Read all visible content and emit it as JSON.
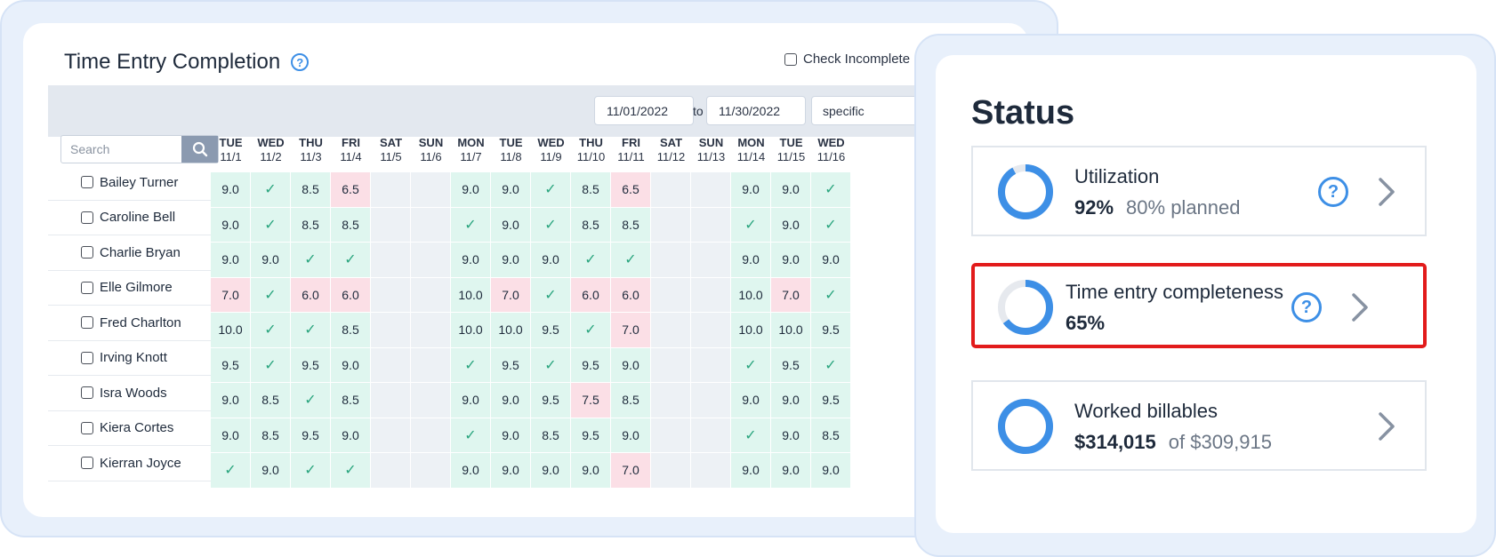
{
  "timesheet": {
    "title": "Time Entry Completion",
    "help_icon": "question-circle-icon",
    "check_incomplete_label": "Check Incomplete",
    "date_from": "11/01/2022",
    "date_to": "11/30/2022",
    "to_label": "to",
    "range_mode": "specific",
    "search_placeholder": "Search",
    "days": [
      {
        "dow": "TUE",
        "date": "11/1"
      },
      {
        "dow": "WED",
        "date": "11/2"
      },
      {
        "dow": "THU",
        "date": "11/3"
      },
      {
        "dow": "FRI",
        "date": "11/4"
      },
      {
        "dow": "SAT",
        "date": "11/5"
      },
      {
        "dow": "SUN",
        "date": "11/6"
      },
      {
        "dow": "MON",
        "date": "11/7"
      },
      {
        "dow": "TUE",
        "date": "11/8"
      },
      {
        "dow": "WED",
        "date": "11/9"
      },
      {
        "dow": "THU",
        "date": "11/10"
      },
      {
        "dow": "FRI",
        "date": "11/11"
      },
      {
        "dow": "SAT",
        "date": "11/12"
      },
      {
        "dow": "SUN",
        "date": "11/13"
      },
      {
        "dow": "MON",
        "date": "11/14"
      },
      {
        "dow": "TUE",
        "date": "11/15"
      },
      {
        "dow": "WED",
        "date": "11/16"
      }
    ],
    "rows": [
      {
        "name": "Bailey Turner",
        "cells": [
          "9.0",
          "✓",
          "8.5",
          "6.5",
          "",
          "",
          "9.0",
          "9.0",
          "✓",
          "8.5",
          "6.5",
          "",
          "",
          "9.0",
          "9.0",
          "✓"
        ],
        "low": [
          3,
          10
        ]
      },
      {
        "name": "Caroline Bell",
        "cells": [
          "9.0",
          "✓",
          "8.5",
          "8.5",
          "",
          "",
          "✓",
          "9.0",
          "✓",
          "8.5",
          "8.5",
          "",
          "",
          "✓",
          "9.0",
          "✓"
        ],
        "low": []
      },
      {
        "name": "Charlie Bryan",
        "cells": [
          "9.0",
          "9.0",
          "✓",
          "✓",
          "",
          "",
          "9.0",
          "9.0",
          "9.0",
          "✓",
          "✓",
          "",
          "",
          "9.0",
          "9.0",
          "9.0"
        ],
        "low": []
      },
      {
        "name": "Elle Gilmore",
        "cells": [
          "7.0",
          "✓",
          "6.0",
          "6.0",
          "",
          "",
          "10.0",
          "7.0",
          "✓",
          "6.0",
          "6.0",
          "",
          "",
          "10.0",
          "7.0",
          "✓"
        ],
        "low": [
          0,
          2,
          3,
          7,
          9,
          10,
          14
        ]
      },
      {
        "name": "Fred Charlton",
        "cells": [
          "10.0",
          "✓",
          "✓",
          "8.5",
          "",
          "",
          "10.0",
          "10.0",
          "9.5",
          "✓",
          "7.0",
          "",
          "",
          "10.0",
          "10.0",
          "9.5"
        ],
        "low": [
          10
        ]
      },
      {
        "name": "Irving Knott",
        "cells": [
          "9.5",
          "✓",
          "9.5",
          "9.0",
          "",
          "",
          "✓",
          "9.5",
          "✓",
          "9.5",
          "9.0",
          "",
          "",
          "✓",
          "9.5",
          "✓"
        ],
        "low": []
      },
      {
        "name": "Isra Woods",
        "cells": [
          "9.0",
          "8.5",
          "✓",
          "8.5",
          "",
          "",
          "9.0",
          "9.0",
          "9.5",
          "7.5",
          "8.5",
          "",
          "",
          "9.0",
          "9.0",
          "9.5"
        ],
        "low": [
          9
        ]
      },
      {
        "name": "Kiera Cortes",
        "cells": [
          "9.0",
          "8.5",
          "9.5",
          "9.0",
          "",
          "",
          "✓",
          "9.0",
          "8.5",
          "9.5",
          "9.0",
          "",
          "",
          "✓",
          "9.0",
          "8.5"
        ],
        "low": []
      },
      {
        "name": "Kierran Joyce",
        "cells": [
          "✓",
          "9.0",
          "✓",
          "✓",
          "",
          "",
          "9.0",
          "9.0",
          "9.0",
          "9.0",
          "7.0",
          "",
          "",
          "9.0",
          "9.0",
          "9.0"
        ],
        "low": [
          10
        ]
      }
    ]
  },
  "status": {
    "title": "Status",
    "cards": [
      {
        "label": "Utilization",
        "value": "92%",
        "sub": "80% planned",
        "progress": 0.92,
        "has_help": true
      },
      {
        "label": "Time entry completeness",
        "value": "65%",
        "sub": "",
        "progress": 0.65,
        "has_help": true
      },
      {
        "label": "Worked billables",
        "value": "$314,015",
        "sub": "of $309,915",
        "progress": 1.0,
        "has_help": false
      }
    ],
    "colors": {
      "accent": "#3d8fe6",
      "highlight": "#e21b1b",
      "ring_track": "#e6e9ee"
    }
  }
}
